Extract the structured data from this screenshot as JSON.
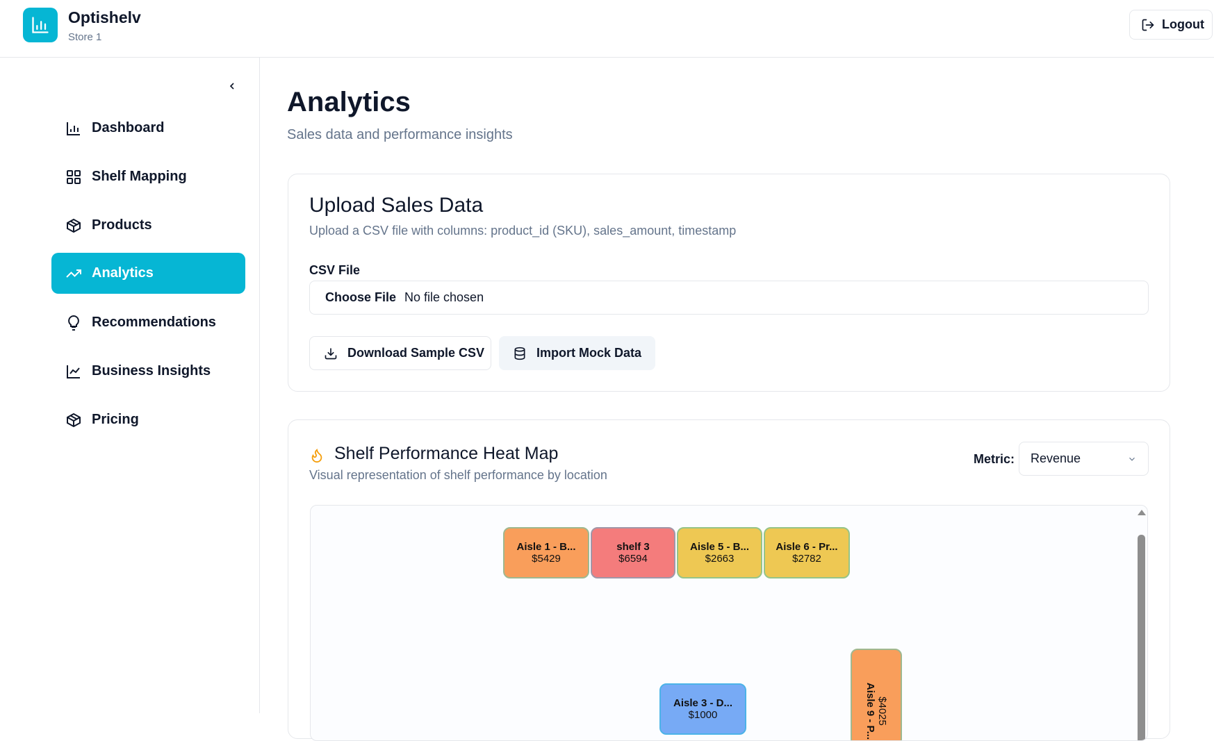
{
  "header": {
    "app_name": "Optishelv",
    "store": "Store 1",
    "logout": "Logout",
    "brand_color": "#06b6d4"
  },
  "sidebar": {
    "items": [
      {
        "label": "Dashboard",
        "icon": "bar-chart-icon"
      },
      {
        "label": "Shelf Mapping",
        "icon": "grid-icon"
      },
      {
        "label": "Products",
        "icon": "package-icon"
      },
      {
        "label": "Analytics",
        "icon": "trending-up-icon",
        "active": true
      },
      {
        "label": "Recommendations",
        "icon": "lightbulb-icon"
      },
      {
        "label": "Business Insights",
        "icon": "line-chart-icon"
      },
      {
        "label": "Pricing",
        "icon": "package-icon"
      }
    ]
  },
  "page": {
    "title": "Analytics",
    "subtitle": "Sales data and performance insights"
  },
  "upload": {
    "title": "Upload Sales Data",
    "description": "Upload a CSV file with columns: product_id (SKU), sales_amount, timestamp",
    "csv_label": "CSV File",
    "choose_file": "Choose File",
    "file_status": "No file chosen",
    "download_sample": "Download Sample CSV",
    "import_mock": "Import Mock Data"
  },
  "heatmap": {
    "title": "Shelf Performance Heat Map",
    "description": "Visual representation of shelf performance by location",
    "metric_label": "Metric:",
    "metric_value": "Revenue",
    "tiles": [
      {
        "name": "Aisle 1 - B...",
        "value": "$5429",
        "color": "#f99e5b"
      },
      {
        "name": "shelf 3",
        "value": "$6594",
        "color": "#f47c7c"
      },
      {
        "name": "Aisle 5 - B...",
        "value": "$2663",
        "color": "#eec853"
      },
      {
        "name": "Aisle 6 - Pr...",
        "value": "$2782",
        "color": "#eec853"
      },
      {
        "name": "Aisle 3 - D...",
        "value": "$1000",
        "color": "#77aaf5"
      },
      {
        "name": "Aisle 9 - P...",
        "value": "$4025",
        "color": "#f99e5b"
      }
    ]
  }
}
